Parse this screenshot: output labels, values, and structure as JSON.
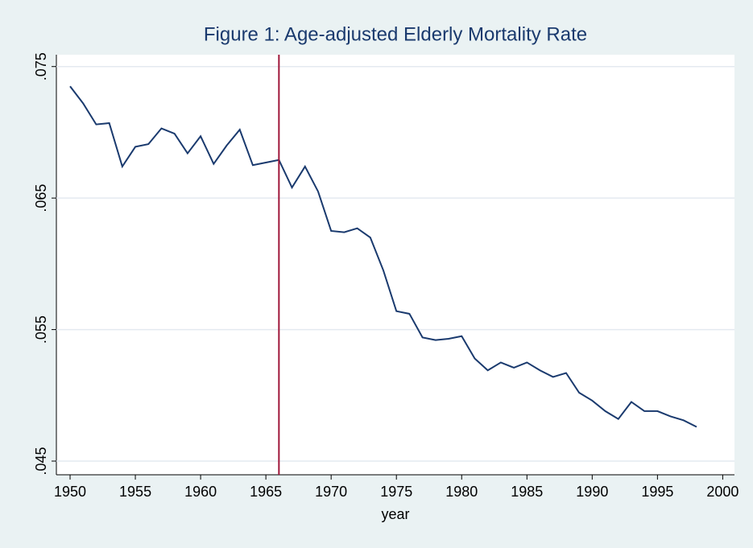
{
  "chart_data": {
    "type": "line",
    "title": "Figure 1: Age-adjusted Elderly Mortality Rate",
    "x_label": "year",
    "x": [
      1950,
      1951,
      1952,
      1953,
      1954,
      1955,
      1956,
      1957,
      1958,
      1959,
      1960,
      1961,
      1962,
      1963,
      1964,
      1965,
      1966,
      1967,
      1968,
      1969,
      1970,
      1971,
      1972,
      1973,
      1974,
      1975,
      1976,
      1977,
      1978,
      1979,
      1980,
      1981,
      1982,
      1983,
      1984,
      1985,
      1986,
      1987,
      1988,
      1989,
      1990,
      1991,
      1992,
      1993,
      1994,
      1995,
      1996,
      1997,
      1998
    ],
    "series": [
      {
        "color": "#1a3a6e",
        "values": [
          0.0735,
          0.0722,
          0.0706,
          0.0707,
          0.0674,
          0.0689,
          0.0691,
          0.0703,
          0.0699,
          0.0684,
          0.0697,
          0.0676,
          0.069,
          0.0702,
          0.0675,
          0.0677,
          0.0679,
          0.0658,
          0.0674,
          0.0655,
          0.0625,
          0.0624,
          0.0627,
          0.062,
          0.0595,
          0.0564,
          0.0562,
          0.0544,
          0.0542,
          0.0543,
          0.0545,
          0.0528,
          0.0519,
          0.0525,
          0.0521,
          0.0525,
          0.0519,
          0.0514,
          0.0517,
          0.0502,
          0.0496,
          0.0488,
          0.0482,
          0.0495,
          0.0488,
          0.0488,
          0.0484,
          0.0481,
          0.0476
        ]
      }
    ],
    "xline": 1966,
    "xline_color": "#a0173a",
    "xlim": [
      1948.95,
      2000.9
    ],
    "ylim": [
      0.04396,
      0.0759
    ],
    "xticks": [
      1950,
      1955,
      1960,
      1965,
      1970,
      1975,
      1980,
      1985,
      1990,
      1995,
      2000
    ],
    "yticks": [
      {
        "value": 0.045,
        "label": ".045"
      },
      {
        "value": 0.055,
        "label": ".055"
      },
      {
        "value": 0.065,
        "label": ".065"
      },
      {
        "value": 0.075,
        "label": ".075"
      }
    ],
    "grid": true
  }
}
